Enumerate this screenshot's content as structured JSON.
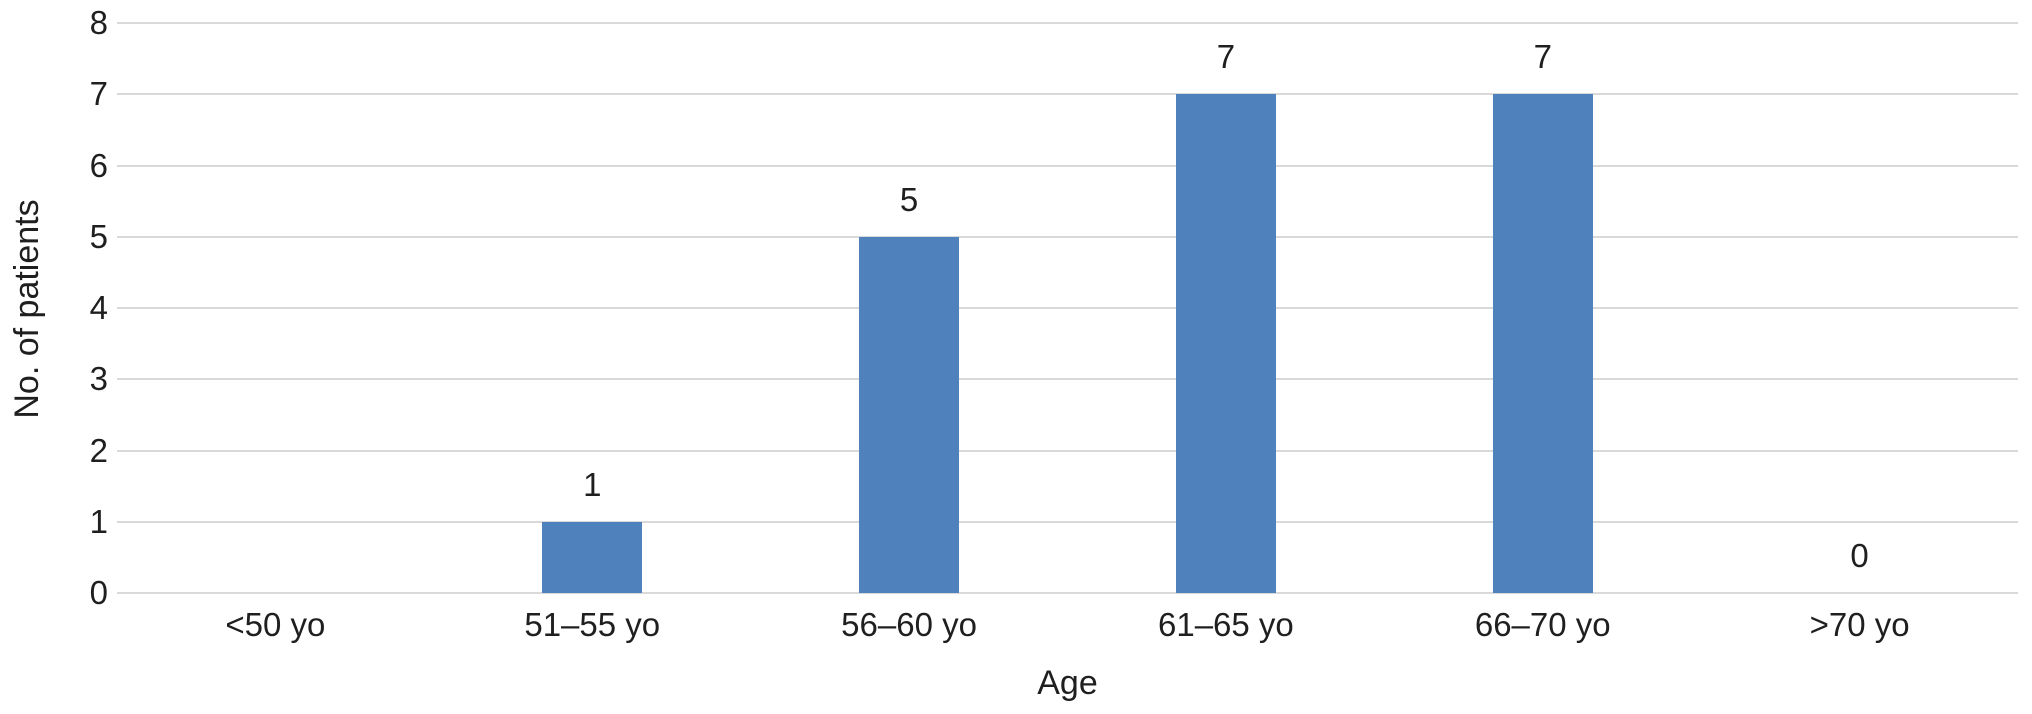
{
  "chart_data": {
    "type": "bar",
    "title": "",
    "categories": [
      "<50 yo",
      "51–55 yo",
      "56–60 yo",
      "61–65 yo",
      "66–70 yo",
      ">70 yo"
    ],
    "values": [
      0,
      1,
      5,
      7,
      7,
      0
    ],
    "data_labels": [
      "",
      "1",
      "5",
      "7",
      "7",
      "0"
    ],
    "xlabel": "Age",
    "ylabel": "No. of patients",
    "ylim": [
      0,
      8
    ],
    "yticks": [
      0,
      1,
      2,
      3,
      4,
      5,
      6,
      7,
      8
    ],
    "grid": "horizontal-only",
    "legend": "none",
    "bar_gap_ratio": 0.68,
    "colors": {
      "bar": "#4f81bd",
      "gridline": "#d9d9d9",
      "text": "#1f1f1f",
      "background": "#ffffff"
    }
  }
}
